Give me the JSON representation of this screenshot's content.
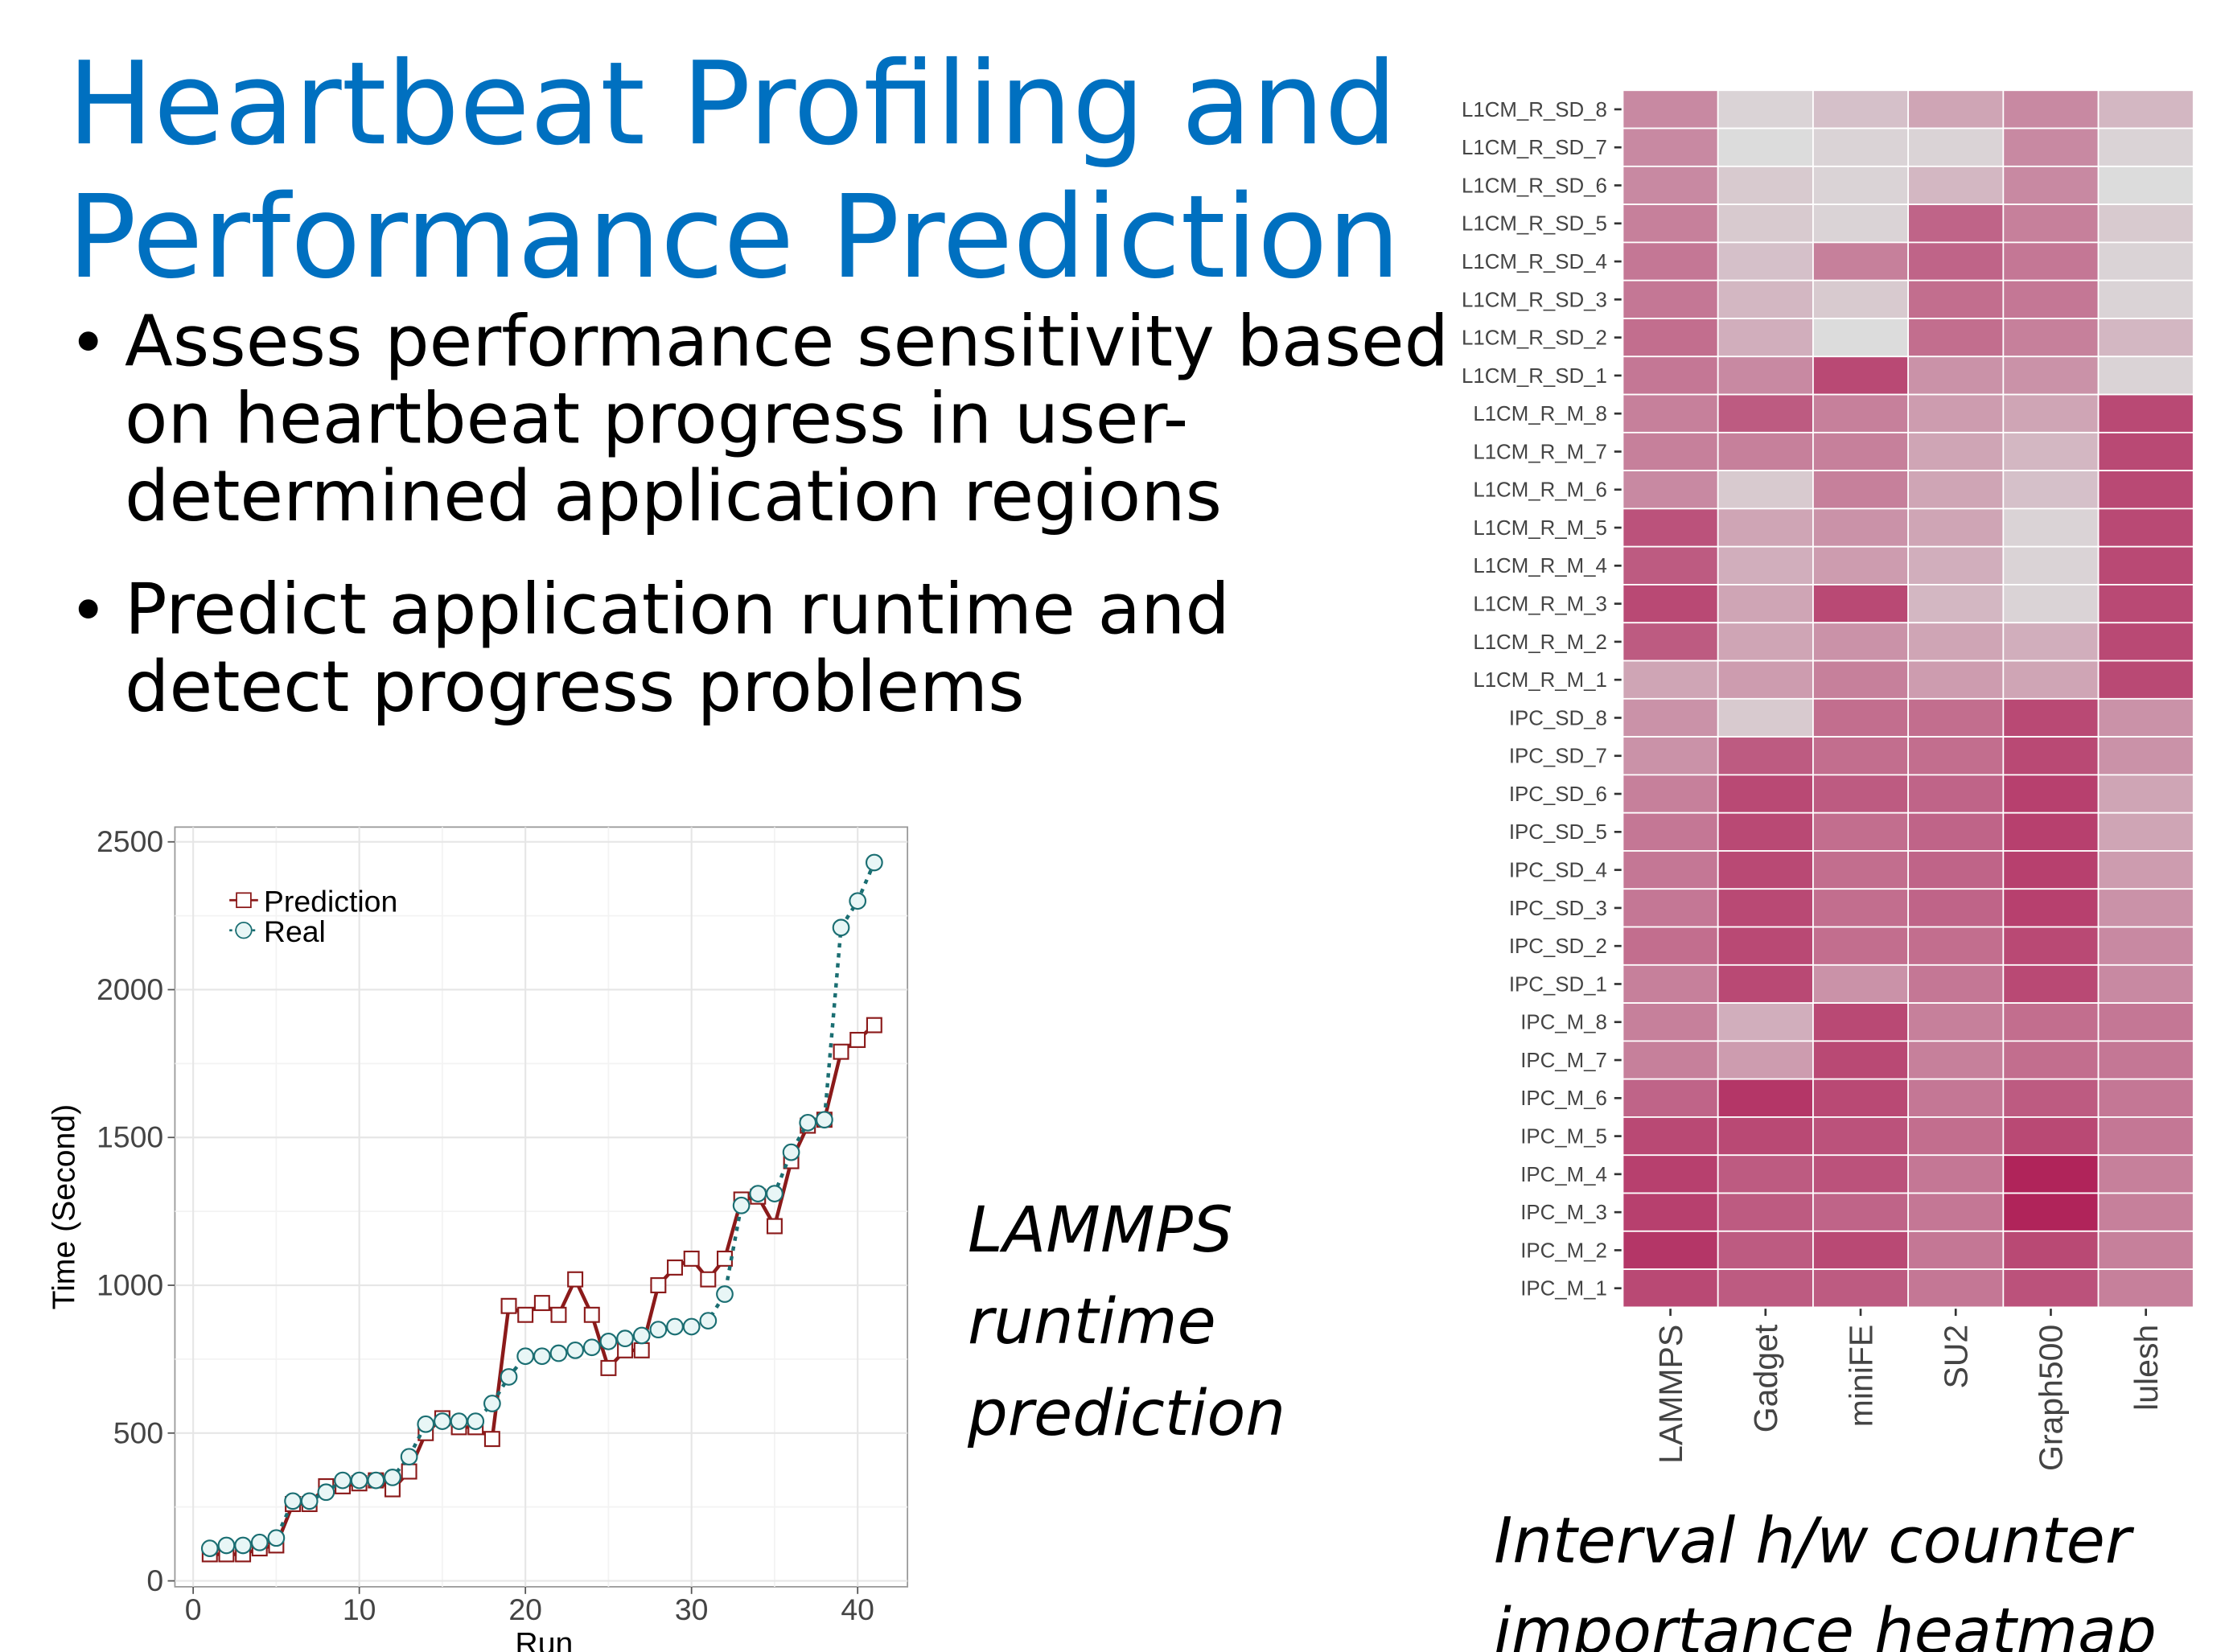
{
  "title_lines": [
    "Heartbeat Profiling and",
    "Performance Prediction"
  ],
  "bullets": [
    [
      "Assess performance sensitivity based",
      "on heartbeat progress in user-",
      "determined application regions"
    ],
    [
      "Predict application runtime and",
      "detect progress problems"
    ]
  ],
  "captions": [
    [
      "LAMMPS",
      "runtime",
      "prediction"
    ],
    [
      "Interval h/w counter",
      "importance heatmap"
    ]
  ],
  "chart_data": [
    {
      "type": "line",
      "x_label": "Run",
      "y_label": "Time (Second)",
      "x": [
        1,
        2,
        3,
        4,
        5,
        6,
        7,
        8,
        9,
        10,
        11,
        12,
        13,
        14,
        15,
        16,
        17,
        18,
        19,
        20,
        21,
        22,
        23,
        24,
        25,
        26,
        27,
        28,
        29,
        30,
        31,
        32,
        33,
        34,
        35,
        36,
        37,
        38,
        39,
        40,
        41
      ],
      "series": [
        {
          "name": "Prediction",
          "color": "#8b1a1a",
          "marker": "square",
          "dashed": false,
          "values": [
            90,
            90,
            90,
            110,
            120,
            260,
            260,
            320,
            320,
            330,
            340,
            310,
            370,
            500,
            550,
            520,
            520,
            480,
            930,
            900,
            940,
            900,
            1020,
            900,
            720,
            780,
            780,
            1000,
            1060,
            1090,
            1020,
            1090,
            1290,
            1300,
            1200,
            1420,
            1540,
            1560,
            1790,
            1830,
            1880
          ]
        },
        {
          "name": "Real",
          "color": "#1a6e72",
          "marker": "circle",
          "dashed": true,
          "values": [
            110,
            120,
            120,
            130,
            145,
            270,
            270,
            300,
            340,
            340,
            340,
            350,
            420,
            530,
            540,
            540,
            540,
            600,
            690,
            760,
            760,
            770,
            780,
            790,
            810,
            820,
            830,
            850,
            860,
            860,
            880,
            970,
            1270,
            1310,
            1310,
            1450,
            1550,
            1560,
            2210,
            2300,
            2430
          ]
        }
      ],
      "xlim": [
        -1.1,
        43
      ],
      "ylim": [
        -20,
        2550
      ],
      "xticks": [
        0,
        10,
        20,
        30,
        40
      ],
      "yticks": [
        0,
        500,
        1000,
        1500,
        2000,
        2500
      ],
      "grid": true,
      "legend": "top-left"
    },
    {
      "type": "heatmap",
      "x_categories": [
        "LAMMPS",
        "Gadget",
        "miniFE",
        "SU2",
        "Graph500",
        "lulesh"
      ],
      "y_categories": [
        "L1CM_R_SD_8",
        "L1CM_R_SD_7",
        "L1CM_R_SD_6",
        "L1CM_R_SD_5",
        "L1CM_R_SD_4",
        "L1CM_R_SD_3",
        "L1CM_R_SD_2",
        "L1CM_R_SD_1",
        "L1CM_R_M_8",
        "L1CM_R_M_7",
        "L1CM_R_M_6",
        "L1CM_R_M_5",
        "L1CM_R_M_4",
        "L1CM_R_M_3",
        "L1CM_R_M_2",
        "L1CM_R_M_1",
        "IPC_SD_8",
        "IPC_SD_7",
        "IPC_SD_6",
        "IPC_SD_5",
        "IPC_SD_4",
        "IPC_SD_3",
        "IPC_SD_2",
        "IPC_SD_1",
        "IPC_M_8",
        "IPC_M_7",
        "IPC_M_6",
        "IPC_M_5",
        "IPC_M_4",
        "IPC_M_3",
        "IPC_M_2",
        "IPC_M_1"
      ],
      "values": [
        [
          45,
          5,
          15,
          30,
          45,
          20
        ],
        [
          45,
          0,
          5,
          5,
          45,
          5
        ],
        [
          45,
          10,
          5,
          20,
          45,
          0
        ],
        [
          50,
          10,
          5,
          65,
          50,
          10
        ],
        [
          55,
          15,
          50,
          65,
          55,
          5
        ],
        [
          55,
          20,
          10,
          60,
          55,
          5
        ],
        [
          60,
          25,
          0,
          60,
          50,
          20
        ],
        [
          55,
          45,
          80,
          40,
          40,
          5
        ],
        [
          50,
          70,
          50,
          35,
          30,
          80
        ],
        [
          50,
          50,
          50,
          30,
          20,
          80
        ],
        [
          45,
          10,
          50,
          30,
          15,
          80
        ],
        [
          75,
          30,
          40,
          30,
          5,
          80
        ],
        [
          70,
          25,
          35,
          25,
          5,
          80
        ],
        [
          80,
          30,
          80,
          20,
          5,
          80
        ],
        [
          70,
          30,
          40,
          30,
          25,
          80
        ],
        [
          30,
          35,
          50,
          35,
          30,
          80
        ],
        [
          40,
          10,
          60,
          60,
          80,
          40
        ],
        [
          40,
          70,
          60,
          60,
          80,
          40
        ],
        [
          50,
          80,
          70,
          65,
          85,
          30
        ],
        [
          55,
          80,
          60,
          65,
          85,
          30
        ],
        [
          55,
          80,
          60,
          65,
          85,
          35
        ],
        [
          55,
          80,
          60,
          65,
          85,
          40
        ],
        [
          60,
          80,
          60,
          60,
          80,
          45
        ],
        [
          50,
          80,
          40,
          55,
          80,
          45
        ],
        [
          50,
          25,
          80,
          50,
          60,
          55
        ],
        [
          50,
          35,
          80,
          50,
          60,
          55
        ],
        [
          65,
          90,
          80,
          55,
          70,
          55
        ],
        [
          80,
          80,
          75,
          60,
          80,
          55
        ],
        [
          85,
          70,
          75,
          55,
          100,
          50
        ],
        [
          85,
          70,
          65,
          55,
          100,
          50
        ],
        [
          90,
          70,
          80,
          55,
          80,
          50
        ],
        [
          80,
          70,
          70,
          55,
          75,
          50
        ]
      ],
      "colors": {
        "low": "#dcdcdc",
        "high": "#b0245a"
      },
      "range": [
        0,
        100
      ]
    }
  ]
}
